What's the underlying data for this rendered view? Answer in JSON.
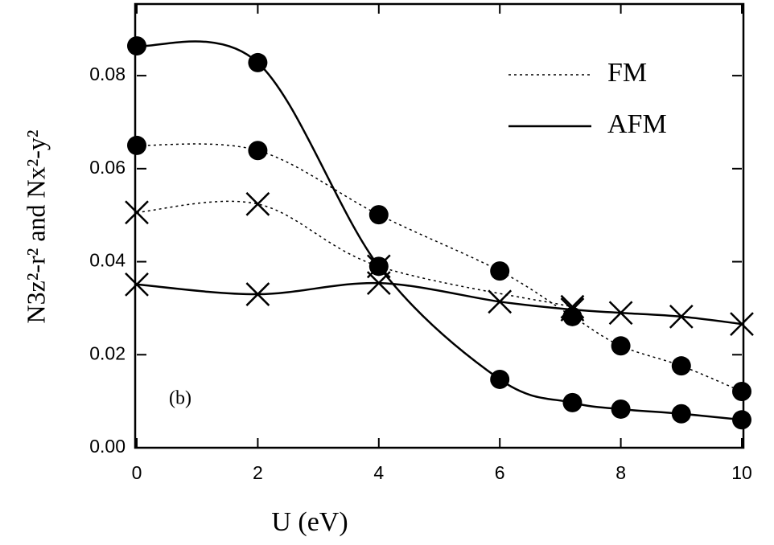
{
  "chart_data": {
    "type": "line",
    "xlabel": "U (eV)",
    "ylabel": "N3z²-r² and Nx²-y²",
    "annotation": "(b)",
    "xlim": [
      0,
      10
    ],
    "ylim": [
      0,
      0.0954
    ],
    "xticks": [
      0,
      2,
      4,
      6,
      8,
      10
    ],
    "yticks": [
      {
        "value": 0,
        "label": "0.00"
      },
      {
        "value": 0.02,
        "label": "0.02"
      },
      {
        "value": 0.04,
        "label": "0.04"
      },
      {
        "value": 0.06,
        "label": "0.06"
      },
      {
        "value": 0.08,
        "label": "0.08"
      }
    ],
    "legend": "upper right",
    "series": [
      {
        "name": "FM",
        "color": "#000000",
        "dash": "dotted",
        "marker": "circle",
        "x": [
          0,
          2,
          4,
          6,
          7.2,
          8,
          9,
          10
        ],
        "values": [
          0.065,
          0.0639,
          0.0501,
          0.038,
          0.0282,
          0.0219,
          0.0176,
          0.0121
        ]
      },
      {
        "name": "FM",
        "color": "#000000",
        "dash": "dotted",
        "marker": "x",
        "x": [
          0,
          2,
          4,
          7.2
        ],
        "values": [
          0.0506,
          0.0524,
          0.039,
          0.0303
        ]
      },
      {
        "name": "AFM",
        "color": "#000000",
        "dash": "solid",
        "marker": "circle",
        "x": [
          0,
          2,
          4,
          6,
          7.2,
          8,
          9,
          10
        ],
        "values": [
          0.0864,
          0.0828,
          0.039,
          0.0147,
          0.0097,
          0.0083,
          0.0073,
          0.006
        ]
      },
      {
        "name": "AFM",
        "color": "#000000",
        "dash": "solid",
        "marker": "x",
        "x": [
          0,
          2,
          4,
          6,
          7.2,
          8,
          9,
          10
        ],
        "values": [
          0.0351,
          0.033,
          0.0354,
          0.0314,
          0.0297,
          0.029,
          0.0282,
          0.0266
        ]
      }
    ]
  }
}
